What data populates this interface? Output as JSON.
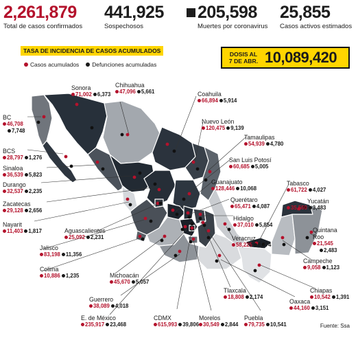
{
  "header": {
    "confirmed": {
      "value": "2,261,879",
      "label": "Total de casos confirmados"
    },
    "suspected": {
      "value": "441,925",
      "label": "Sospechosos"
    },
    "deaths": {
      "value": "205,598",
      "label": "Muertes por coronavirus"
    },
    "active": {
      "value": "25,855",
      "label": "Casos activos estimados"
    }
  },
  "title": "TASA DE INCIDENCIA DE CASOS ACUMULADOS",
  "legend": {
    "cases": {
      "label": "Casos acumulados",
      "color": "#b4122c"
    },
    "deaths": {
      "label": "Defunciones acumuladas",
      "color": "#1a1a1a"
    }
  },
  "doses": {
    "label_line1": "DOSIS AL",
    "label_line2": "7 DE ABR.",
    "value": "10,089,420"
  },
  "source": "Fuente: Ssa",
  "states": [
    {
      "key": "sonora",
      "name": "Sonora",
      "cases": "71,002",
      "deaths": "6,373"
    },
    {
      "key": "chihuahua",
      "name": "Chihuahua",
      "cases": "47,096",
      "deaths": "5,661"
    },
    {
      "key": "coahuila",
      "name": "Coahuila",
      "cases": "66,894",
      "deaths": "5,914"
    },
    {
      "key": "bc",
      "name": "BC",
      "cases": "46,708",
      "deaths": "7,748"
    },
    {
      "key": "nuevo_leon",
      "name": "Nuevo León",
      "cases": "120,475",
      "deaths": "9,139"
    },
    {
      "key": "tamaulipas",
      "name": "Tamaulipas",
      "cases": "54,939",
      "deaths": "4,780"
    },
    {
      "key": "bcs",
      "name": "BCS",
      "cases": "28,797",
      "deaths": "1,276"
    },
    {
      "key": "sinaloa",
      "name": "Sinaloa",
      "cases": "36,539",
      "deaths": "5,823"
    },
    {
      "key": "slp",
      "name": "San Luis Potosí",
      "cases": "60,685",
      "deaths": "5,005"
    },
    {
      "key": "durango",
      "name": "Durango",
      "cases": "32,537",
      "deaths": "2,235"
    },
    {
      "key": "guanajuato",
      "name": "Guanajuato",
      "cases": "128,446",
      "deaths": "10,068"
    },
    {
      "key": "zacatecas",
      "name": "Zacatecas",
      "cases": "29,128",
      "deaths": "2,656"
    },
    {
      "key": "tabasco",
      "name": "Tabasco",
      "cases": "61,722",
      "deaths": "4,027"
    },
    {
      "key": "queretaro",
      "name": "Querétaro",
      "cases": "65,471",
      "deaths": "4,087"
    },
    {
      "key": "yucatan",
      "name": "Yucatán",
      "cases": "35,560",
      "deaths": "3,483"
    },
    {
      "key": "nayarit",
      "name": "Nayarit",
      "cases": "11,403",
      "deaths": "1,817"
    },
    {
      "key": "hidalgo",
      "name": "Hidalgo",
      "cases": "37,010",
      "deaths": "5,854"
    },
    {
      "key": "aguascalientes",
      "name": "Aguascalientes",
      "cases": "25,092",
      "deaths": "2,231"
    },
    {
      "key": "veracruz",
      "name": "Veracruz",
      "cases": "58,225",
      "deaths": "8,774"
    },
    {
      "key": "quintana_roo",
      "name_line1": "Quintana",
      "name_line2": "Roo",
      "cases": "21,545",
      "deaths": "2,483"
    },
    {
      "key": "jalisco",
      "name": "Jalisco",
      "cases": "83,198",
      "deaths": "11,356"
    },
    {
      "key": "colima",
      "name": "Colima",
      "cases": "10,886",
      "deaths": "1,235"
    },
    {
      "key": "campeche",
      "name": "Campeche",
      "cases": "9,058",
      "deaths": "1,123"
    },
    {
      "key": "michoacan",
      "name": "Michoacán",
      "cases": "45,670",
      "deaths": "5,057"
    },
    {
      "key": "tlaxcala",
      "name": "Tlaxcala",
      "cases": "18,808",
      "deaths": "2,174"
    },
    {
      "key": "chiapas",
      "name": "Chiapas",
      "cases": "10,542",
      "deaths": "1,391"
    },
    {
      "key": "guerrero",
      "name": "Guerrero",
      "cases": "38,089",
      "deaths": "4,018"
    },
    {
      "key": "oaxaca",
      "name": "Oaxaca",
      "cases": "44,160",
      "deaths": "3,151"
    },
    {
      "key": "edomex",
      "name": "E. de México",
      "cases": "235,917",
      "deaths": "23,468"
    },
    {
      "key": "cdmx",
      "name": "CDMX",
      "cases": "615,993",
      "deaths": "39,806"
    },
    {
      "key": "morelos",
      "name": "Morelos",
      "cases": "30,549",
      "deaths": "2,844"
    },
    {
      "key": "puebla",
      "name": "Puebla",
      "cases": "79,735",
      "deaths": "10,541"
    }
  ]
}
